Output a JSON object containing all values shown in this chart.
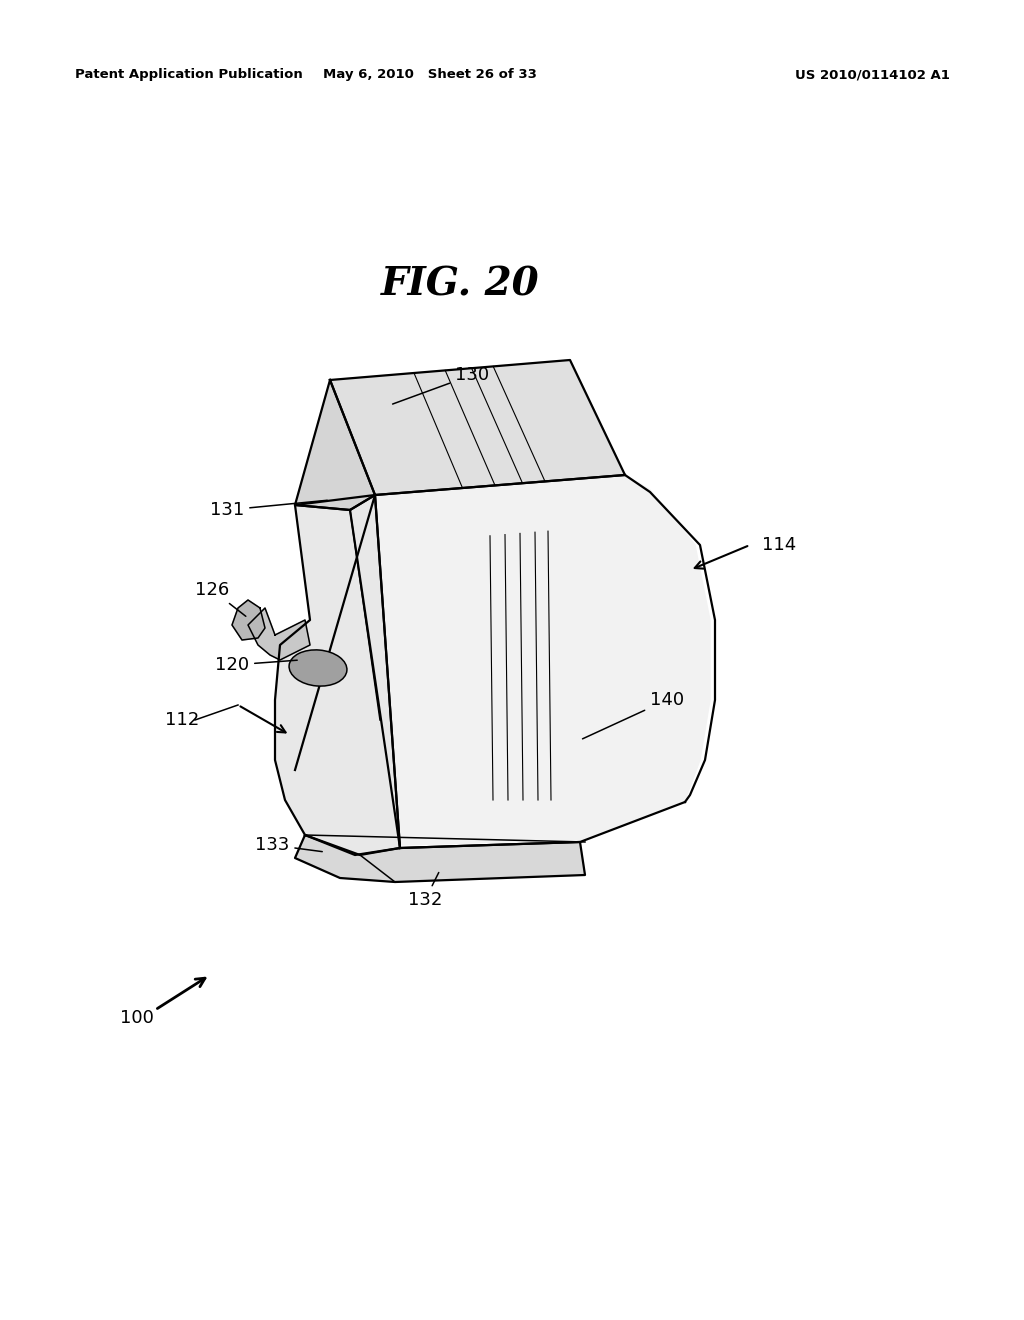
{
  "background_color": "#ffffff",
  "header_left": "Patent Application Publication",
  "header_mid": "May 6, 2010   Sheet 26 of 33",
  "header_right": "US 2010/0114102 A1",
  "fig_title": "FIG. 20",
  "line_color": "#000000",
  "face_color_top": "#e0e0e0",
  "face_color_right": "#f2f2f2",
  "face_color_left": "#cccccc",
  "face_color_foot": "#d8d8d8"
}
